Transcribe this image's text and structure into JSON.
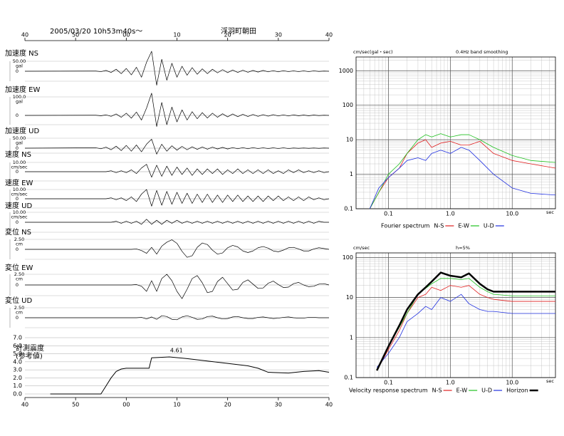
{
  "header": {
    "title": "2005/03/20 10h53m40s～",
    "station": "浮羽町朝田"
  },
  "time_axis": {
    "xlim": [
      40,
      100
    ],
    "xticks": [
      40,
      50,
      {
        "value": 60,
        "label": "00"
      },
      {
        "value": 70,
        "label": "10"
      },
      {
        "value": 80,
        "label": "20"
      },
      {
        "value": 90,
        "label": "30"
      },
      {
        "value": 100,
        "label": "40"
      }
    ]
  },
  "chart_data": [
    {
      "type": "line",
      "title": "加速度 NS",
      "y_label": "gal",
      "color": "#000000",
      "ylim": [
        -50,
        50
      ],
      "yticks": [
        0,
        {
          "value": 50,
          "label": "50.00"
        }
      ],
      "x": [
        40,
        54,
        55,
        56,
        57,
        58,
        59,
        60,
        61,
        62,
        63,
        64,
        65,
        66,
        67,
        68,
        69,
        70,
        71,
        72,
        73,
        74,
        75,
        76,
        77,
        78,
        79,
        80,
        81,
        82,
        83,
        84,
        85,
        86,
        87,
        88,
        89,
        90,
        91,
        92,
        93,
        94,
        95,
        96,
        97,
        98,
        99,
        100
      ],
      "values": [
        0,
        1,
        -2,
        4,
        -6,
        10,
        -12,
        14,
        -18,
        20,
        -30,
        45,
        100,
        -70,
        60,
        -45,
        40,
        -30,
        25,
        -20,
        18,
        -15,
        12,
        -12,
        10,
        -8,
        8,
        -7,
        6,
        -6,
        5,
        -5,
        4,
        -4,
        4,
        -3,
        3,
        -3,
        3,
        -2,
        2,
        -2,
        2,
        -2,
        2,
        -1,
        1,
        0
      ]
    },
    {
      "type": "line",
      "title": "加速度 EW",
      "y_label": "gal",
      "color": "#000000",
      "ylim": [
        -50,
        100
      ],
      "yticks": [
        0,
        {
          "value": 100,
          "label": "100.0"
        }
      ],
      "x": [
        40,
        54,
        55,
        56,
        57,
        58,
        59,
        60,
        61,
        62,
        63,
        64,
        65,
        66,
        67,
        68,
        69,
        70,
        71,
        72,
        73,
        74,
        75,
        76,
        77,
        78,
        79,
        80,
        81,
        82,
        83,
        84,
        85,
        86,
        87,
        88,
        89,
        90,
        91,
        92,
        93,
        94,
        95,
        96,
        97,
        98,
        99,
        100
      ],
      "values": [
        0,
        1,
        -2,
        3,
        -5,
        8,
        -10,
        12,
        -15,
        18,
        -25,
        40,
        120,
        -60,
        70,
        -50,
        45,
        -35,
        30,
        -25,
        20,
        -18,
        15,
        -14,
        12,
        -10,
        9,
        -8,
        8,
        -7,
        6,
        -6,
        5,
        -5,
        4,
        -4,
        4,
        -3,
        3,
        -3,
        3,
        -2,
        2,
        -2,
        2,
        -1,
        1,
        0
      ]
    },
    {
      "type": "line",
      "title": "加速度 UD",
      "y_label": "gal",
      "color": "#000000",
      "ylim": [
        -25,
        50
      ],
      "yticks": [
        0,
        {
          "value": 50,
          "label": "50.00"
        }
      ],
      "x": [
        40,
        54,
        55,
        56,
        57,
        58,
        59,
        60,
        61,
        62,
        63,
        64,
        65,
        66,
        67,
        68,
        69,
        70,
        71,
        72,
        73,
        74,
        75,
        76,
        77,
        78,
        79,
        80,
        81,
        82,
        83,
        84,
        85,
        86,
        87,
        88,
        89,
        90,
        91,
        92,
        93,
        94,
        95,
        96,
        97,
        98,
        99,
        100
      ],
      "values": [
        0,
        2,
        -3,
        5,
        -8,
        10,
        -12,
        14,
        -15,
        16,
        -18,
        20,
        45,
        -30,
        20,
        -15,
        12,
        -10,
        9,
        -8,
        7,
        -6,
        6,
        -5,
        5,
        -4,
        4,
        -4,
        3,
        -3,
        3,
        -3,
        3,
        -2,
        2,
        -2,
        2,
        -2,
        2,
        -2,
        1,
        -1,
        1,
        -1,
        1,
        -1,
        1,
        0
      ]
    },
    {
      "type": "line",
      "title": "速度 NS",
      "y_label": "cm/sec",
      "color": "#000000",
      "ylim": [
        -10,
        10
      ],
      "yticks": [
        0,
        {
          "value": 10,
          "label": "10.00"
        }
      ],
      "x": [
        40,
        54,
        55,
        56,
        57,
        58,
        59,
        60,
        61,
        62,
        63,
        64,
        65,
        66,
        67,
        68,
        69,
        70,
        71,
        72,
        73,
        74,
        75,
        76,
        77,
        78,
        79,
        80,
        81,
        82,
        83,
        84,
        85,
        86,
        87,
        88,
        89,
        90,
        91,
        92,
        93,
        94,
        95,
        96,
        97,
        98,
        99,
        100
      ],
      "values": [
        0,
        0,
        0,
        0,
        1,
        -1,
        1,
        -1,
        2,
        -2,
        4,
        8,
        -6,
        7,
        -5,
        6,
        -4,
        5,
        -3,
        4,
        -4,
        3,
        -3,
        3,
        -2,
        3,
        -3,
        2,
        -2,
        3,
        -2,
        2,
        -2,
        2,
        -2,
        2,
        -2,
        1,
        -2,
        2,
        -1,
        2,
        -1,
        1,
        -1,
        1,
        -1,
        0
      ]
    },
    {
      "type": "line",
      "title": "速度 EW",
      "y_label": "cm/sec",
      "color": "#000000",
      "ylim": [
        -10,
        10
      ],
      "yticks": [
        0,
        {
          "value": 10,
          "label": "10.00"
        }
      ],
      "x": [
        40,
        54,
        55,
        56,
        57,
        58,
        59,
        60,
        61,
        62,
        63,
        64,
        65,
        66,
        67,
        68,
        69,
        70,
        71,
        72,
        73,
        74,
        75,
        76,
        77,
        78,
        79,
        80,
        81,
        82,
        83,
        84,
        85,
        86,
        87,
        88,
        89,
        90,
        91,
        92,
        93,
        94,
        95,
        96,
        97,
        98,
        99,
        100
      ],
      "values": [
        0,
        0,
        0,
        0,
        1,
        -1,
        1,
        -2,
        2,
        -3,
        5,
        10,
        -8,
        9,
        -7,
        8,
        -6,
        7,
        -5,
        6,
        -5,
        5,
        -4,
        5,
        -4,
        4,
        -4,
        4,
        -3,
        4,
        -3,
        3,
        -3,
        3,
        -3,
        3,
        -2,
        3,
        -2,
        2,
        -2,
        2,
        -2,
        2,
        -1,
        1,
        -1,
        0
      ]
    },
    {
      "type": "line",
      "title": "速度 UD",
      "y_label": "cm/sec",
      "color": "#000000",
      "ylim": [
        -10,
        10
      ],
      "yticks": [
        0,
        {
          "value": 10,
          "label": "10.00"
        }
      ],
      "x": [
        40,
        54,
        55,
        56,
        57,
        58,
        59,
        60,
        61,
        62,
        63,
        64,
        65,
        66,
        67,
        68,
        69,
        70,
        71,
        72,
        73,
        74,
        75,
        76,
        77,
        78,
        79,
        80,
        81,
        82,
        83,
        84,
        85,
        86,
        87,
        88,
        89,
        90,
        91,
        92,
        93,
        94,
        95,
        96,
        97,
        98,
        99,
        100
      ],
      "values": [
        0,
        0,
        0,
        0,
        0,
        1,
        -1,
        1,
        -1,
        1,
        -2,
        3,
        -2,
        2,
        -2,
        2,
        -1,
        2,
        -1,
        1,
        -1,
        1,
        -1,
        1,
        -1,
        1,
        -1,
        1,
        -1,
        1,
        -1,
        1,
        -1,
        1,
        -1,
        1,
        -1,
        1,
        -1,
        1,
        -1,
        1,
        -1,
        1,
        -1,
        1,
        0,
        0
      ]
    },
    {
      "type": "line",
      "title": "変位 NS",
      "y_label": "cm",
      "color": "#000000",
      "ylim": [
        -2.5,
        2.5
      ],
      "yticks": [
        0,
        {
          "value": 2.5,
          "label": "2.50"
        }
      ],
      "x": [
        40,
        54,
        55,
        56,
        57,
        58,
        59,
        60,
        61,
        62,
        63,
        64,
        65,
        66,
        67,
        68,
        69,
        70,
        71,
        72,
        73,
        74,
        75,
        76,
        77,
        78,
        79,
        80,
        81,
        82,
        83,
        84,
        85,
        86,
        87,
        88,
        89,
        90,
        91,
        92,
        93,
        94,
        95,
        96,
        97,
        98,
        99,
        100
      ],
      "values": [
        0,
        0,
        0,
        0,
        0,
        0,
        0,
        0,
        0,
        0.1,
        -0.3,
        -1.0,
        0.5,
        -1.2,
        0.8,
        1.8,
        2.4,
        1.5,
        -0.5,
        -2.0,
        -1.6,
        0.5,
        1.6,
        1.2,
        -0.2,
        -1.2,
        -0.9,
        0.4,
        1.0,
        0.6,
        -0.4,
        -0.8,
        -0.4,
        0.4,
        0.7,
        0.3,
        -0.4,
        -0.6,
        -0.2,
        0.4,
        0.5,
        0.1,
        -0.4,
        -0.4,
        0.1,
        0.4,
        0.2,
        0
      ]
    },
    {
      "type": "line",
      "title": "変位 EW",
      "y_label": "cm",
      "color": "#000000",
      "ylim": [
        -2.5,
        2.5
      ],
      "yticks": [
        0,
        {
          "value": 2.5,
          "label": "2.50"
        }
      ],
      "x": [
        40,
        54,
        55,
        56,
        57,
        58,
        59,
        60,
        61,
        62,
        63,
        64,
        65,
        66,
        67,
        68,
        69,
        70,
        71,
        72,
        73,
        74,
        75,
        76,
        77,
        78,
        79,
        80,
        81,
        82,
        83,
        84,
        85,
        86,
        87,
        88,
        89,
        90,
        91,
        92,
        93,
        94,
        95,
        96,
        97,
        98,
        99,
        100
      ],
      "values": [
        0,
        0,
        0,
        0,
        0,
        0,
        0,
        0,
        0,
        0.1,
        -0.3,
        -1.5,
        1.0,
        -1.5,
        1.5,
        2.5,
        1.0,
        -1.5,
        -3.2,
        -1.0,
        1.5,
        2.2,
        0.5,
        -1.8,
        -1.5,
        0.8,
        1.8,
        0.3,
        -1.2,
        -1.0,
        0.6,
        1.2,
        0.2,
        -0.8,
        -0.7,
        0.4,
        0.9,
        0.1,
        -0.6,
        -0.5,
        0.3,
        0.6,
        0,
        -0.4,
        -0.3,
        0.2,
        0.3,
        0
      ]
    },
    {
      "type": "line",
      "title": "変位 UD",
      "y_label": "cm",
      "color": "#000000",
      "ylim": [
        -2.5,
        2.5
      ],
      "yticks": [
        0,
        {
          "value": 2.5,
          "label": "2.50"
        }
      ],
      "x": [
        40,
        54,
        55,
        56,
        57,
        58,
        59,
        60,
        61,
        62,
        63,
        64,
        65,
        66,
        67,
        68,
        69,
        70,
        71,
        72,
        73,
        74,
        75,
        76,
        77,
        78,
        79,
        80,
        81,
        82,
        83,
        84,
        85,
        86,
        87,
        88,
        89,
        90,
        91,
        92,
        93,
        94,
        95,
        96,
        97,
        98,
        99,
        100
      ],
      "values": [
        0,
        0,
        0,
        0,
        0,
        0,
        0,
        0,
        0,
        0,
        0.1,
        -0.3,
        0.2,
        -0.4,
        0.5,
        0.3,
        -0.4,
        -0.5,
        0.2,
        0.5,
        0.1,
        -0.4,
        -0.3,
        0.3,
        0.4,
        0,
        -0.3,
        -0.2,
        0.2,
        0.3,
        0,
        -0.2,
        -0.2,
        0.1,
        0.2,
        0,
        -0.2,
        -0.1,
        0.1,
        0.2,
        0,
        -0.1,
        -0.1,
        0.1,
        0.1,
        0,
        0,
        0
      ]
    },
    {
      "type": "line",
      "title": "計測震度",
      "subtitle": "(参考値)",
      "color": "#000000",
      "xlim": [
        40,
        100
      ],
      "xticks": [
        40,
        50,
        {
          "value": 60,
          "label": "00"
        },
        {
          "value": 70,
          "label": "10"
        },
        {
          "value": 80,
          "label": "20"
        },
        {
          "value": 90,
          "label": "30"
        },
        {
          "value": 100,
          "label": "40"
        }
      ],
      "ylim": [
        0,
        7
      ],
      "yticks": [
        {
          "value": 0,
          "label": "0.0"
        },
        {
          "value": 1,
          "label": "1.0"
        },
        {
          "value": 2,
          "label": "2.0"
        },
        {
          "value": 3,
          "label": "3.0"
        },
        {
          "value": 4,
          "label": "4.0"
        },
        {
          "value": 5,
          "label": "5.0"
        },
        {
          "value": 6,
          "label": "6.0"
        },
        {
          "value": 7,
          "label": "7.0"
        }
      ],
      "grid": true,
      "x": [
        45,
        55,
        56,
        57,
        58,
        59,
        60,
        64.5,
        65,
        68.5,
        72,
        76,
        80,
        84,
        86,
        88,
        92,
        95,
        98,
        100
      ],
      "values": [
        0,
        0,
        1.0,
        2.0,
        2.8,
        3.1,
        3.2,
        3.2,
        4.5,
        4.61,
        4.4,
        4.1,
        3.8,
        3.5,
        3.2,
        2.7,
        2.6,
        2.8,
        2.9,
        2.7
      ],
      "peak_index": 9
    },
    {
      "type": "line",
      "title": "Fourier spectrum",
      "y_label": "cm/sec(gal・sec)",
      "annotation": "0.4Hz band smoothing",
      "x_label": "sec",
      "xscale": "log",
      "yscale": "log",
      "xlim": [
        0.03,
        50
      ],
      "ylim": [
        0.1,
        2500
      ],
      "xticks": [
        0.1,
        {
          "value": 1,
          "label": "1.0"
        },
        {
          "value": 10,
          "label": "10.0"
        }
      ],
      "yticks": [
        0.1,
        1,
        10,
        100,
        1000
      ],
      "grid": true,
      "x": [
        0.05,
        0.07,
        0.1,
        0.15,
        0.2,
        0.3,
        0.4,
        0.5,
        0.7,
        1,
        1.5,
        2,
        3,
        5,
        10,
        20,
        50
      ],
      "series": [
        {
          "name": "N-S",
          "color": "#e02020",
          "values": [
            0.1,
            0.3,
            0.8,
            1.5,
            4,
            8,
            10,
            6,
            8,
            9,
            7,
            7,
            9,
            4,
            2.5,
            2,
            1.5
          ]
        },
        {
          "name": "E-W",
          "color": "#20c020",
          "values": [
            0.1,
            0.3,
            1,
            2,
            4,
            10,
            14,
            12,
            15,
            12,
            14,
            14,
            10,
            6,
            3.5,
            2.5,
            2.2
          ]
        },
        {
          "name": "U-D",
          "color": "#2030e0",
          "values": [
            0.1,
            0.4,
            0.8,
            1.5,
            2.5,
            3,
            2.5,
            4,
            5,
            4,
            6,
            5,
            2.5,
            1,
            0.4,
            0.28,
            0.25
          ]
        }
      ]
    },
    {
      "type": "line",
      "title": "Velocity response spectrum",
      "y_label": "cm/sec",
      "annotation": "h=5%",
      "x_label": "sec",
      "xscale": "log",
      "yscale": "log",
      "xlim": [
        0.03,
        50
      ],
      "ylim": [
        0.1,
        130
      ],
      "xticks": [
        0.1,
        {
          "value": 1,
          "label": "1.0"
        },
        {
          "value": 10,
          "label": "10.0"
        }
      ],
      "yticks": [
        0.1,
        1,
        10,
        100
      ],
      "grid": true,
      "x": [
        0.065,
        0.1,
        0.15,
        0.2,
        0.3,
        0.4,
        0.5,
        0.7,
        1,
        1.5,
        2,
        3,
        4,
        5,
        10,
        50
      ],
      "series": [
        {
          "name": "N-S",
          "color": "#e02020",
          "values": [
            0.15,
            0.5,
            1.5,
            4,
            10,
            12,
            18,
            15,
            20,
            18,
            20,
            12,
            10,
            9,
            8,
            8
          ]
        },
        {
          "name": "E-W",
          "color": "#20c020",
          "values": [
            0.15,
            0.6,
            1.8,
            4,
            12,
            17,
            22,
            30,
            30,
            28,
            30,
            18,
            14,
            12,
            11,
            11
          ]
        },
        {
          "name": "U-D",
          "color": "#2030e0",
          "values": [
            0.18,
            0.4,
            1.0,
            2.5,
            4,
            6,
            5,
            10,
            8,
            12,
            7,
            5,
            4.5,
            4.5,
            4,
            4
          ]
        },
        {
          "name": "Horizon",
          "color": "#000000",
          "line_width": 2.5,
          "values": [
            0.15,
            0.6,
            2,
            5,
            12,
            18,
            25,
            42,
            35,
            32,
            40,
            22,
            16,
            14,
            14,
            14
          ]
        }
      ]
    }
  ]
}
